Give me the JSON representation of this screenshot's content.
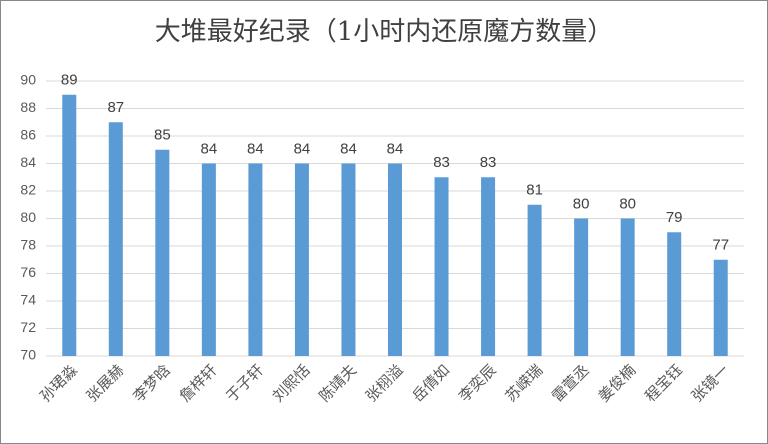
{
  "chart_data": {
    "type": "bar",
    "title": "大堆最好纪录（1小时内还原魔方数量）",
    "categories": [
      "孙珺淼",
      "张展赫",
      "李梦晗",
      "詹梓轩",
      "于子轩",
      "刘熙恬",
      "陈靖夫",
      "张栩溢",
      "岳倩如",
      "李奕辰",
      "苏嵘瑞",
      "雷萱丞",
      "姜俊楠",
      "程宝钰",
      "张镜一"
    ],
    "values": [
      89,
      87,
      85,
      84,
      84,
      84,
      84,
      84,
      83,
      83,
      81,
      80,
      80,
      79,
      77
    ],
    "color": "#5b9bd5",
    "ylim": [
      70,
      90
    ],
    "yticks": [
      70,
      72,
      74,
      76,
      78,
      80,
      82,
      84,
      86,
      88,
      90
    ],
    "grid": true
  }
}
